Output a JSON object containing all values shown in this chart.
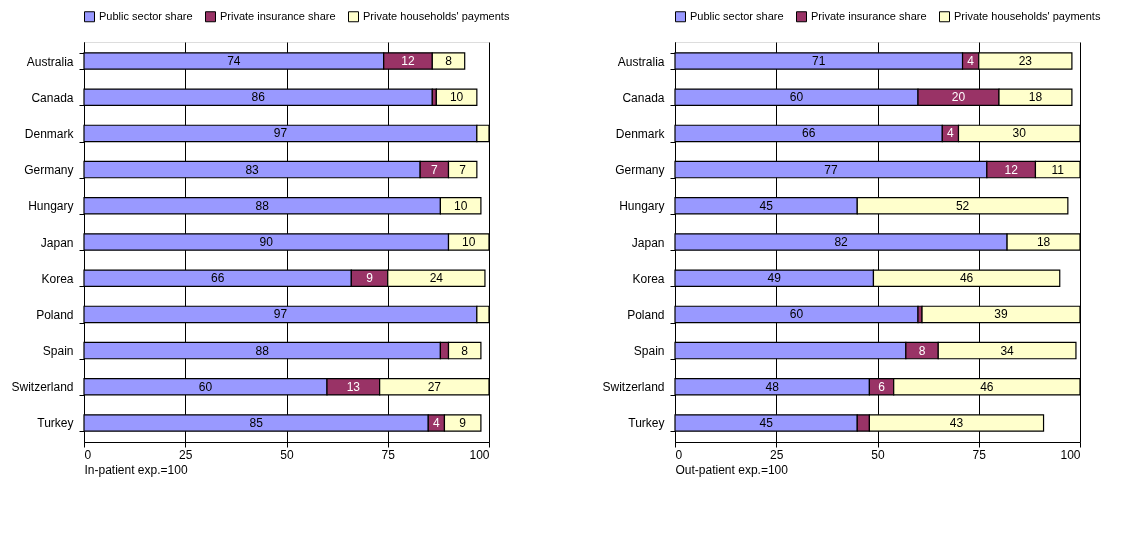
{
  "chart_data": [
    {
      "type": "bar",
      "orientation": "horizontal",
      "stacked": true,
      "xlabel": "In-patient exp.=100",
      "xlim": [
        0,
        100
      ],
      "xticks": [
        0,
        25,
        50,
        75,
        100
      ],
      "grid": "x",
      "legend": "top",
      "categories": [
        "Australia",
        "Canada",
        "Denmark",
        "Germany",
        "Hungary",
        "Japan",
        "Korea",
        "Poland",
        "Spain",
        "Switzerland",
        "Turkey"
      ],
      "series": [
        {
          "name": "Public sector share",
          "color": "#9999ff",
          "values": [
            74,
            86,
            97,
            83,
            88,
            90,
            66,
            97,
            88,
            60,
            85
          ],
          "value_labels": [
            "74",
            "86",
            "97",
            "83",
            "88",
            "90",
            "66",
            "97",
            "88",
            "60",
            "85"
          ]
        },
        {
          "name": "Private insurance share",
          "color": "#993366",
          "values": [
            12,
            1,
            null,
            7,
            null,
            null,
            9,
            null,
            2,
            13,
            4
          ],
          "value_labels": [
            "12",
            null,
            null,
            "7",
            null,
            null,
            "9",
            null,
            null,
            "13",
            "4"
          ]
        },
        {
          "name": "Private households' payments",
          "color": "#ffffcc",
          "values": [
            8,
            10,
            3,
            7,
            10,
            10,
            24,
            3,
            8,
            27,
            9
          ],
          "value_labels": [
            "8",
            "10",
            null,
            "7",
            "10",
            "10",
            "24",
            null,
            "8",
            "27",
            "9"
          ]
        }
      ]
    },
    {
      "type": "bar",
      "orientation": "horizontal",
      "stacked": true,
      "xlabel": "Out-patient exp.=100",
      "xlim": [
        0,
        100
      ],
      "xticks": [
        0,
        25,
        50,
        75,
        100
      ],
      "grid": "x",
      "legend": "top",
      "categories": [
        "Australia",
        "Canada",
        "Denmark",
        "Germany",
        "Hungary",
        "Japan",
        "Korea",
        "Poland",
        "Spain",
        "Switzerland",
        "Turkey"
      ],
      "series": [
        {
          "name": "Public sector share",
          "color": "#9999ff",
          "values": [
            71,
            60,
            66,
            77,
            45,
            82,
            49,
            60,
            57,
            48,
            45
          ],
          "value_labels": [
            "71",
            "60",
            "66",
            "77",
            "45",
            "82",
            "49",
            "60",
            null,
            "48",
            "45"
          ]
        },
        {
          "name": "Private insurance share",
          "color": "#993366",
          "values": [
            4,
            20,
            4,
            12,
            null,
            null,
            null,
            1,
            8,
            6,
            3
          ],
          "value_labels": [
            "4",
            "20",
            "4",
            "12",
            null,
            null,
            null,
            null,
            "8",
            "6",
            null
          ]
        },
        {
          "name": "Private households' payments",
          "color": "#ffffcc",
          "values": [
            23,
            18,
            30,
            11,
            52,
            18,
            46,
            39,
            34,
            46,
            43
          ],
          "value_labels": [
            "23",
            "18",
            "30",
            "11",
            "52",
            "18",
            "46",
            "39",
            "34",
            "46",
            "43"
          ]
        }
      ]
    }
  ]
}
